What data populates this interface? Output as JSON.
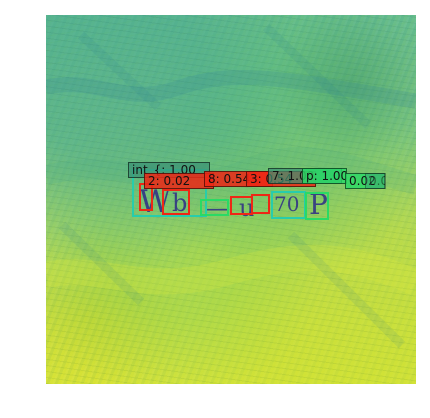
{
  "detections": [
    {
      "id": "int",
      "label": "int_{: 1.00"
    },
    {
      "id": "first",
      "label": "2: 0.02"
    },
    {
      "id": "second",
      "label": "8: 0.54"
    },
    {
      "id": "third",
      "label": "3: 0.54"
    },
    {
      "id": "fourth",
      "label": "7: 1.00"
    },
    {
      "id": "fifth",
      "label": "p: 1.00"
    },
    {
      "id": "sixth",
      "label": "0.02"
    },
    {
      "id": "seventh",
      "label": "0.02"
    }
  ],
  "colors": {
    "cyan": "#27cdac",
    "red": "#ee2815",
    "green": "#2ada65",
    "teal": "#3a9174",
    "ink": "#2e2d86"
  }
}
